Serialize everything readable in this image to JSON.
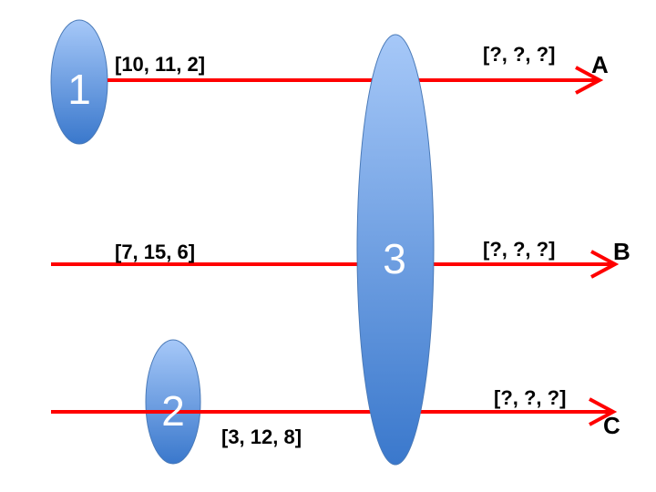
{
  "colors": {
    "arrow": "#ff0000",
    "node_top": "#a6c8f8",
    "node_bottom": "#3a78cc",
    "node_stroke": "#4a7ab8"
  },
  "nodes": {
    "n1": "1",
    "n2": "2",
    "n3": "3"
  },
  "vectors": {
    "a_in": "[10, 11, 2]",
    "a_out": "[?, ?, ?]",
    "b_in": "[7, 15, 6]",
    "b_out": "[?, ?, ?]",
    "c_in": "[3, 12, 8]",
    "c_out": "[?, ?, ?]"
  },
  "outputs": {
    "a": "A",
    "b": "B",
    "c": "C"
  }
}
